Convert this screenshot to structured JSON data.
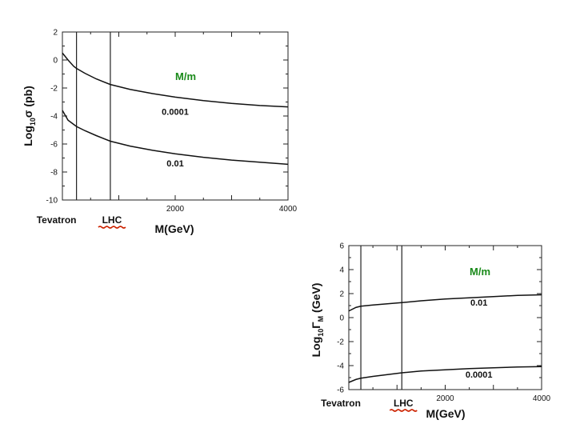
{
  "annotation_color": "#1a8a1a",
  "underline_color": "#cc2200",
  "chart_data": [
    {
      "type": "line",
      "xlabel": "M(GeV)",
      "ylabel_main": "Log",
      "ylabel_sub": "10",
      "ylabel_rest": "σ (pb)",
      "xlim": [
        0,
        4000
      ],
      "ylim": [
        -10,
        2
      ],
      "xticks": [
        2000,
        4000
      ],
      "xtick_labels": [
        "2000",
        "4000"
      ],
      "yticks": [
        2,
        0,
        -2,
        -4,
        -6,
        -8,
        -10
      ],
      "ytick_labels": [
        "2",
        "0",
        "-2",
        "-4",
        "-6",
        "-8",
        "-10"
      ],
      "vlines": [
        {
          "x": 250,
          "label": "Tevatron"
        },
        {
          "x": 850,
          "label": "LHC",
          "underlined": true
        }
      ],
      "legend_title": "M/m",
      "series": [
        {
          "name": "0.0001",
          "x": [
            0,
            100,
            200,
            250,
            400,
            600,
            850,
            1200,
            1600,
            2000,
            2500,
            3000,
            3500,
            4000
          ],
          "y": [
            0.5,
            0.0,
            -0.45,
            -0.6,
            -0.95,
            -1.35,
            -1.75,
            -2.1,
            -2.4,
            -2.65,
            -2.9,
            -3.1,
            -3.25,
            -3.35
          ],
          "label_pos": [
            2000,
            -3.9
          ]
        },
        {
          "name": "0.01",
          "x": [
            0,
            100,
            200,
            250,
            400,
            600,
            850,
            1200,
            1600,
            2000,
            2500,
            3000,
            3500,
            4000
          ],
          "y": [
            -3.6,
            -4.3,
            -4.6,
            -4.75,
            -5.05,
            -5.4,
            -5.8,
            -6.15,
            -6.45,
            -6.7,
            -6.95,
            -7.15,
            -7.3,
            -7.45
          ],
          "label_pos": [
            2000,
            -7.6
          ]
        }
      ]
    },
    {
      "type": "line",
      "xlabel": "M(GeV)",
      "ylabel_main": "Log",
      "ylabel_sub": "10",
      "ylabel_rest": "Γ",
      "ylabel_sub2": "M",
      "ylabel_unit": "(GeV)",
      "xlim": [
        0,
        4000
      ],
      "ylim": [
        -6,
        6
      ],
      "xticks": [
        2000,
        4000
      ],
      "xtick_labels": [
        "2000",
        "4000"
      ],
      "yticks": [
        6,
        4,
        2,
        0,
        -2,
        -4,
        -6
      ],
      "ytick_labels": [
        "6",
        "4",
        "2",
        "0",
        "-2",
        "-4",
        "-6"
      ],
      "vlines": [
        {
          "x": 250,
          "label": "Tevatron"
        },
        {
          "x": 1100,
          "label": "LHC",
          "underlined": true
        }
      ],
      "legend_title": "M/m",
      "series": [
        {
          "name": "0.01",
          "x": [
            0,
            150,
            250,
            500,
            800,
            1100,
            1500,
            2000,
            2500,
            3000,
            3500,
            4000
          ],
          "y": [
            0.55,
            0.85,
            0.95,
            1.05,
            1.15,
            1.25,
            1.4,
            1.55,
            1.65,
            1.75,
            1.85,
            1.9
          ],
          "label_pos": [
            2700,
            1.0
          ]
        },
        {
          "name": "0.0001",
          "x": [
            0,
            150,
            250,
            500,
            800,
            1100,
            1500,
            2000,
            2500,
            3000,
            3500,
            4000
          ],
          "y": [
            -5.4,
            -5.15,
            -5.05,
            -4.9,
            -4.75,
            -4.6,
            -4.45,
            -4.35,
            -4.25,
            -4.18,
            -4.12,
            -4.08
          ],
          "label_pos": [
            2700,
            -5.0
          ]
        }
      ]
    }
  ]
}
